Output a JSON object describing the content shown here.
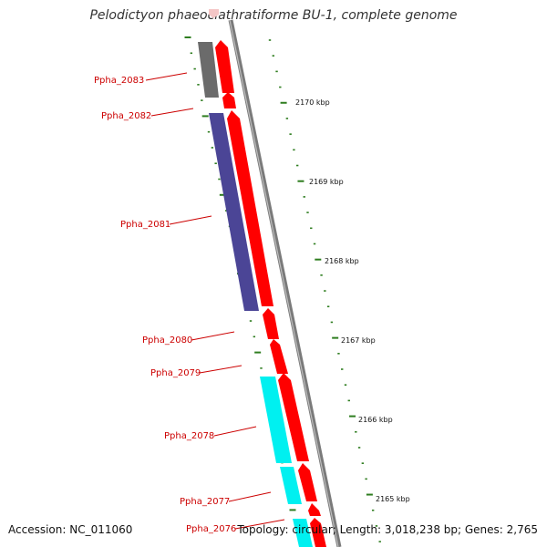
{
  "title": "Pelodictyon phaeoclathratiforme BU-1, complete genome",
  "footer": {
    "accession": "Accession: NC_011060",
    "summary": "Topology: circular; Length: 3,018,238 bp; Genes: 2,765"
  },
  "colors": {
    "cds_forward": "#ff0000",
    "gene_gray": "#6b6b6b",
    "gene_purple": "#4b4596",
    "gene_cyan": "#00f0f0",
    "backbone": "#808080",
    "ticks": "#2e7d1f",
    "label": "#cc0000"
  },
  "kbp_ticks": [
    "2170 kbp",
    "2169 kbp",
    "2168 kbp",
    "2167 kbp",
    "2166 kbp",
    "2165 kbp"
  ],
  "genes": [
    {
      "name": "Ppha_2083"
    },
    {
      "name": "Ppha_2082"
    },
    {
      "name": "Ppha_2081"
    },
    {
      "name": "Ppha_2080"
    },
    {
      "name": "Ppha_2079"
    },
    {
      "name": "Ppha_2078"
    },
    {
      "name": "Ppha_2077"
    },
    {
      "name": "Ppha_2076"
    }
  ]
}
